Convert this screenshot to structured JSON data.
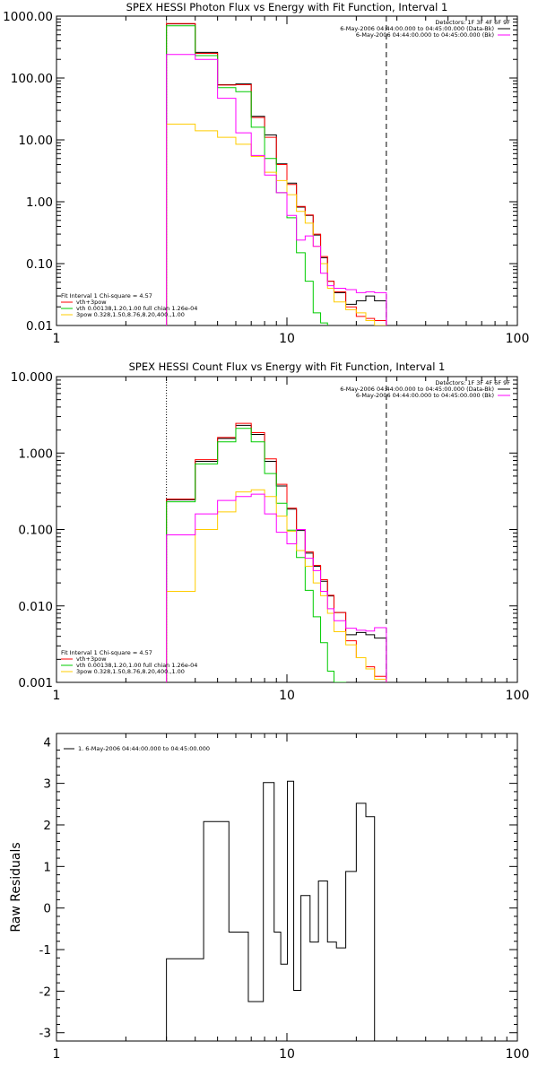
{
  "chart_data": [
    {
      "type": "line",
      "title": "SPEX HESSI Photon Flux vs Energy with Fit Function, Interval 1",
      "xlabel": "",
      "ylabel": "",
      "xscale": "log",
      "yscale": "log",
      "xlim": [
        1,
        100
      ],
      "ylim": [
        0.01,
        1000
      ],
      "xticks": [
        "1",
        "10",
        "100"
      ],
      "yticks": [
        "0.01",
        "0.10",
        "1.00",
        "10.00",
        "100.00",
        "1000.00"
      ],
      "detectors": "Detectors: 1F 3F 4F 6F 9F",
      "legend_top": [
        {
          "text": "6-May-2006 04:44:00.000 to 04:45:00.000 (Data-Bk)",
          "color": "#000000"
        },
        {
          "text": "6-May-2006 04:44:00.000 to 04:45:00.000 (Bk)",
          "color": "#ff00ff"
        }
      ],
      "fit_header": "Fit Interval 1   Chi-square = 4.57",
      "legend_bottom": [
        {
          "text": "vth+3pow",
          "color": "#ff0000"
        },
        {
          "text": "vth 0.00138,1.20,1.00  full chian 1.26e-04",
          "color": "#00cc00"
        },
        {
          "text": "3pow 0.328,1.50,8.76,8.20,400.,1.00",
          "color": "#ffcc00"
        }
      ],
      "vlines": [
        {
          "x": 3.0,
          "style": "dotted",
          "color": "#000000"
        },
        {
          "x": 27.0,
          "style": "dashed",
          "color": "#000000"
        }
      ],
      "bin_edges": [
        3,
        4,
        5,
        6,
        7,
        8,
        9,
        10,
        11,
        12,
        13,
        14,
        15,
        16,
        18,
        20,
        22,
        24,
        27
      ],
      "series": [
        {
          "color": "#000000",
          "values": [
            750,
            260,
            78,
            80,
            24,
            12,
            4.1,
            2.0,
            0.82,
            0.6,
            0.29,
            0.125,
            0.052,
            0.034,
            0.022,
            0.025,
            0.03,
            0.025
          ]
        },
        {
          "color": "#ff0000",
          "values": [
            760,
            250,
            77,
            78,
            23,
            11,
            4.0,
            1.9,
            0.84,
            0.61,
            0.3,
            0.13,
            0.052,
            0.035,
            0.02,
            0.014,
            0.013,
            0.012
          ]
        },
        {
          "color": "#00cc00",
          "values": [
            700,
            230,
            70,
            60,
            16,
            5.0,
            1.4,
            0.55,
            0.15,
            0.052,
            0.016,
            0.011
          ]
        },
        {
          "color": "#ffcc00",
          "values": [
            18,
            14,
            11,
            8.5,
            5.4,
            3.0,
            2.2,
            1.3,
            0.7,
            0.45,
            0.19,
            0.1,
            0.04,
            0.024,
            0.018,
            0.016,
            0.012,
            0.01
          ]
        },
        {
          "color": "#ff00ff",
          "values": [
            240,
            200,
            47,
            13,
            5.6,
            2.7,
            1.4,
            0.6,
            0.24,
            0.28,
            0.19,
            0.07,
            0.044,
            0.04,
            0.038,
            0.034,
            0.035,
            0.034
          ]
        }
      ]
    },
    {
      "type": "line",
      "title": "SPEX HESSI Count Flux vs Energy with Fit Function, Interval 1",
      "xlabel": "",
      "ylabel": "",
      "xscale": "log",
      "yscale": "log",
      "xlim": [
        1,
        100
      ],
      "ylim": [
        0.001,
        10
      ],
      "xticks": [
        "1",
        "10",
        "100"
      ],
      "yticks": [
        "0.001",
        "0.010",
        "0.100",
        "1.000",
        "10.000"
      ],
      "detectors": "Detectors: 1F 3F 4F 6F 9F",
      "legend_top": [
        {
          "text": "6-May-2006 04:44:00.000 to 04:45:00.000 (Data-Bk)",
          "color": "#000000"
        },
        {
          "text": "6-May-2006 04:44:00.000 to 04:45:00.000 (Bk)",
          "color": "#ff00ff"
        }
      ],
      "fit_header": "Fit Interval 1   Chi-square = 4.57",
      "legend_bottom": [
        {
          "text": "vth+3pow",
          "color": "#ff0000"
        },
        {
          "text": "vth 0.00138,1.20,1.00  full chian 1.26e-04",
          "color": "#00cc00"
        },
        {
          "text": "3pow 0.328,1.50,8.76,8.20,400.,1.00",
          "color": "#ffcc00"
        }
      ],
      "vlines": [
        {
          "x": 3.0,
          "style": "dotted",
          "color": "#000000"
        },
        {
          "x": 27.0,
          "style": "dashed",
          "color": "#000000"
        }
      ],
      "bin_edges": [
        3,
        4,
        5,
        6,
        7,
        8,
        9,
        10,
        11,
        12,
        13,
        14,
        15,
        16,
        18,
        20,
        22,
        24,
        27
      ],
      "series": [
        {
          "color": "#000000",
          "values": [
            0.245,
            0.78,
            1.55,
            2.3,
            1.75,
            0.78,
            0.37,
            0.185,
            0.097,
            0.049,
            0.033,
            0.021,
            0.0135,
            0.0082,
            0.0042,
            0.0045,
            0.0042,
            0.0038
          ]
        },
        {
          "color": "#ff0000",
          "values": [
            0.25,
            0.82,
            1.6,
            2.45,
            1.85,
            0.84,
            0.39,
            0.19,
            0.1,
            0.051,
            0.034,
            0.022,
            0.0138,
            0.0082,
            0.0035,
            0.0021,
            0.0016,
            0.0012
          ]
        },
        {
          "color": "#00cc00",
          "values": [
            0.23,
            0.72,
            1.4,
            2.1,
            1.4,
            0.54,
            0.22,
            0.098,
            0.043,
            0.016,
            0.0072,
            0.0033,
            0.0014,
            0.001
          ]
        },
        {
          "color": "#ffcc00",
          "values": [
            0.0155,
            0.1,
            0.17,
            0.31,
            0.33,
            0.27,
            0.15,
            0.095,
            0.053,
            0.033,
            0.02,
            0.0136,
            0.008,
            0.0046,
            0.0031,
            0.0021,
            0.0015,
            0.0011
          ]
        },
        {
          "color": "#ff00ff",
          "values": [
            0.085,
            0.16,
            0.24,
            0.27,
            0.29,
            0.16,
            0.092,
            0.065,
            0.1,
            0.042,
            0.029,
            0.0155,
            0.0092,
            0.0064,
            0.0051,
            0.0048,
            0.0047,
            0.0052
          ]
        }
      ]
    },
    {
      "type": "line",
      "title": "",
      "xlabel": "",
      "ylabel": "Raw Residuals",
      "xscale": "log",
      "yscale": "linear",
      "xlim": [
        1,
        100
      ],
      "ylim": [
        -3.2,
        4.2
      ],
      "xticks": [
        "1",
        "10",
        "100"
      ],
      "yticks": [
        "-3",
        "-2",
        "-1",
        "0",
        "1",
        "2",
        "3",
        "4"
      ],
      "legend": {
        "text": "1. 6-May-2006 04:44:00.000 to 04:45:00.000",
        "color": "#000000"
      },
      "bin_edges": [
        3,
        4,
        5,
        6,
        7,
        8,
        9,
        10,
        11,
        12,
        13,
        14,
        15,
        16,
        18,
        20,
        22,
        24,
        27
      ],
      "series": [
        {
          "color": "#000000",
          "values": [
            -1.22,
            -1.22,
            2.08,
            2.08,
            -0.58,
            -0.58,
            -2.25,
            -2.25,
            3.02,
            3.02,
            -0.58,
            -1.35,
            3.05,
            -1.98,
            0.3,
            -0.82,
            0.65,
            -0.82,
            -0.96,
            0.88,
            2.52,
            2.2
          ]
        }
      ]
    }
  ]
}
